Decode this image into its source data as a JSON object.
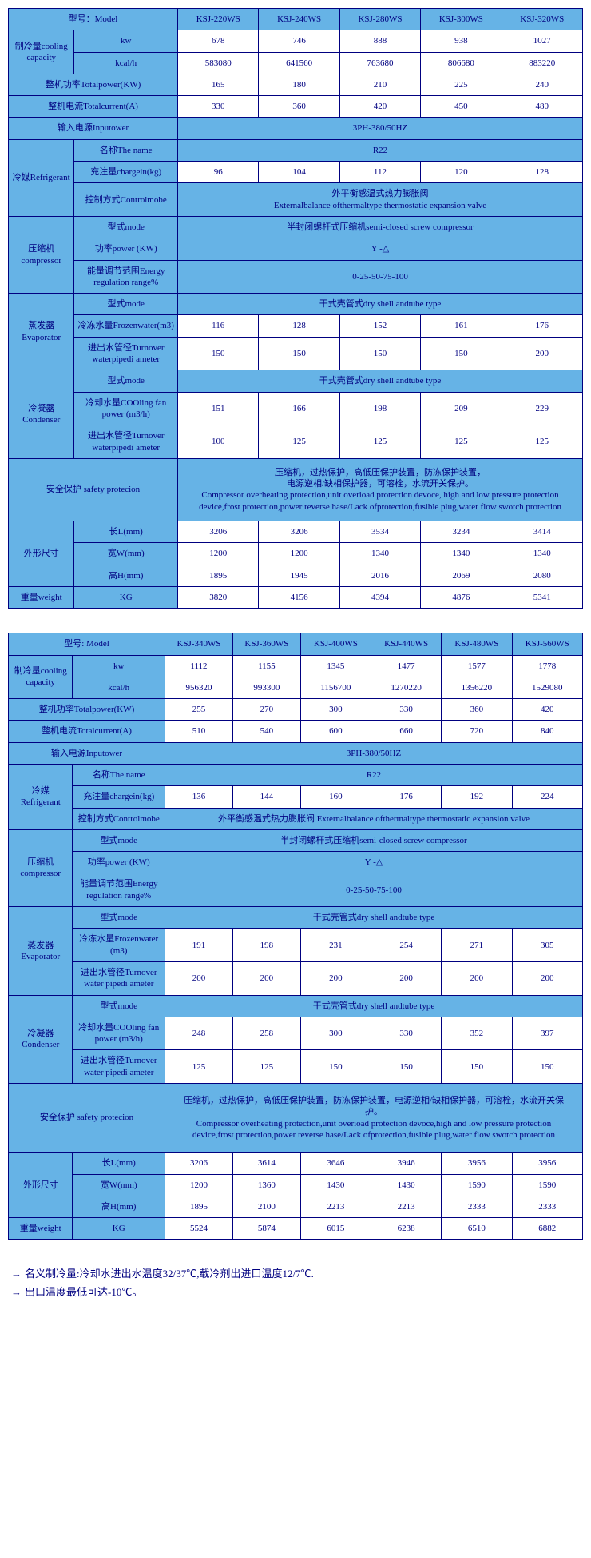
{
  "colors": {
    "header_bg": "#66b3e6",
    "border": "#000080",
    "text": "#000080",
    "value_bg": "#ffffff"
  },
  "t1": {
    "model_label": "型号：Model",
    "models": [
      "KSJ-220WS",
      "KSJ-240WS",
      "KSJ-280WS",
      "KSJ-300WS",
      "KSJ-320WS"
    ],
    "cooling_label": "制冷量cooling capacity",
    "kw_label": "kw",
    "kw": [
      "678",
      "746",
      "888",
      "938",
      "1027"
    ],
    "kcal_label": "kcal/h",
    "kcal": [
      "583080",
      "641560",
      "763680",
      "806680",
      "883220"
    ],
    "totalpower_label": "整机功率Totalpower(KW)",
    "totalpower": [
      "165",
      "180",
      "210",
      "225",
      "240"
    ],
    "totalcurrent_label": "整机电流Totalcurrent(A)",
    "totalcurrent": [
      "330",
      "360",
      "420",
      "450",
      "480"
    ],
    "inputpower_label": "输入电源Inputower",
    "inputpower_val": "3PH-380/50HZ",
    "refrigerant_label": "冷媒Refrigerant",
    "name_label": "名称The name",
    "name_val": "R22",
    "chargein_label": "充注量chargein(kg)",
    "chargein": [
      "96",
      "104",
      "112",
      "120",
      "128"
    ],
    "controlmode_label": "控制方式Controlmobe",
    "controlmode_val": "外平衡感温式热力膨胀阀\nExternalbalance ofthermaltype thermostatic expansion valve",
    "compressor_label": "压缩机compressor",
    "mode_label": "型式mode",
    "compressor_mode": "半封闭螺杆式压缩机semi-closed screw compressor",
    "power_label": "功率power (KW)",
    "power_val": "Y -△",
    "energy_label": "能量调节范围Energy regulation range%",
    "energy_val": "0-25-50-75-100",
    "evap_label": "蒸发器\nEvaporator",
    "evap_mode": "干式壳管式dry shell andtube type",
    "frozen_label": "冷冻水量Frozenwater(m3)",
    "frozen": [
      "116",
      "128",
      "152",
      "161",
      "176"
    ],
    "turnover_label": "进出水管径Turnover waterpipedi ameter",
    "evap_turnover": [
      "150",
      "150",
      "150",
      "150",
      "200"
    ],
    "cond_label": "冷凝器\nCondenser",
    "cond_mode": "干式壳管式dry shell andtube type",
    "fanpower_label": "冷却水量COOling fan power (m3/h)",
    "fanpower": [
      "151",
      "166",
      "198",
      "209",
      "229"
    ],
    "cond_turnover": [
      "100",
      "125",
      "125",
      "125",
      "125"
    ],
    "safety_label": "安全保护  safety protecion",
    "safety_val": "压缩机，过热保护，高低压保护装置，防冻保护装置，\n电源逆相/缺相保护器，可溶栓，水流开关保护。\nCompressor overheating protection,unit overioad protection devoce, high and low pressure protection device,frost protection,power reverse hase/Lack ofprotection,fusible plug,water flow swotch protection",
    "dim_label": "外形尺寸",
    "len_label": "长L(mm)",
    "len": [
      "3206",
      "3206",
      "3534",
      "3234",
      "3414"
    ],
    "wid_label": "宽W(mm)",
    "wid": [
      "1200",
      "1200",
      "1340",
      "1340",
      "1340"
    ],
    "hgt_label": "高H(mm)",
    "hgt": [
      "1895",
      "1945",
      "2016",
      "2069",
      "2080"
    ],
    "weight_label": "重量weight",
    "kg_label": "KG",
    "weight": [
      "3820",
      "4156",
      "4394",
      "4876",
      "5341"
    ]
  },
  "t2": {
    "model_label": "型号: Model",
    "models": [
      "KSJ-340WS",
      "KSJ-360WS",
      "KSJ-400WS",
      "KSJ-440WS",
      "KSJ-480WS",
      "KSJ-560WS"
    ],
    "cooling_label": "制冷量cooling capacity",
    "kw_label": "kw",
    "kw": [
      "1112",
      "1155",
      "1345",
      "1477",
      "1577",
      "1778"
    ],
    "kcal_label": "kcal/h",
    "kcal": [
      "956320",
      "993300",
      "1156700",
      "1270220",
      "1356220",
      "1529080"
    ],
    "totalpower_label": "整机功率Totalpower(KW)",
    "totalpower": [
      "255",
      "270",
      "300",
      "330",
      "360",
      "420"
    ],
    "totalcurrent_label": "整机电流Totalcurrent(A)",
    "totalcurrent": [
      "510",
      "540",
      "600",
      "660",
      "720",
      "840"
    ],
    "inputpower_label": "输入电源Inputower",
    "inputpower_val": "3PH-380/50HZ",
    "refrigerant_label": "冷媒Refrigerant",
    "name_label": "名称The name",
    "name_val": "R22",
    "chargein_label": "充注量chargein(kg)",
    "chargein": [
      "136",
      "144",
      "160",
      "176",
      "192",
      "224"
    ],
    "controlmode_label": "控制方式Controlmobe",
    "controlmode_val": "外平衡感温式热力膨胀阀 Externalbalance ofthermaltype thermostatic expansion valve",
    "compressor_label": "压缩机compressor",
    "mode_label": "型式mode",
    "compressor_mode": "半封闭螺杆式压缩机semi-closed screw compressor",
    "power_label": "功率power (KW)",
    "power_val": "Y -△",
    "energy_label": "能量调节范围Energy regulation range%",
    "energy_val": "0-25-50-75-100",
    "evap_label": "蒸发器\nEvaporator",
    "evap_mode": "干式壳管式dry shell andtube type",
    "frozen_label": "冷冻水量Frozenwater (m3)",
    "frozen": [
      "191",
      "198",
      "231",
      "254",
      "271",
      "305"
    ],
    "turnover_label": "进出水管径Turnover water pipedi ameter",
    "evap_turnover": [
      "200",
      "200",
      "200",
      "200",
      "200",
      "200"
    ],
    "cond_label": "冷凝器\nCondenser",
    "cond_mode": "干式壳管式dry shell andtube type",
    "fanpower_label": "冷却水量COOling fan power (m3/h)",
    "fanpower": [
      "248",
      "258",
      "300",
      "330",
      "352",
      "397"
    ],
    "cond_turnover": [
      "125",
      "125",
      "150",
      "150",
      "150",
      "150"
    ],
    "safety_label": "安全保护  safety protecion",
    "safety_val": "压缩机，过热保护，高低压保护装置，防冻保护装置，电源逆相/缺相保护器，可溶栓，水流开关保护。\nCompressor overheating protection,unit overioad protection devoce,high and low pressure protection device,frost protection,power reverse hase/Lack ofprotection,fusible plug,water flow swotch protection",
    "dim_label": "外形尺寸",
    "len_label": "长L(mm)",
    "len": [
      "3206",
      "3614",
      "3646",
      "3946",
      "3956",
      "3956"
    ],
    "wid_label": "宽W(mm)",
    "wid": [
      "1200",
      "1360",
      "1430",
      "1430",
      "1590",
      "1590"
    ],
    "hgt_label": "高H(mm)",
    "hgt": [
      "1895",
      "2100",
      "2213",
      "2213",
      "2333",
      "2333"
    ],
    "weight_label": "重量weight",
    "kg_label": "KG",
    "weight": [
      "5524",
      "5874",
      "6015",
      "6238",
      "6510",
      "6882"
    ]
  },
  "notes": {
    "n1": "名义制冷量:冷却水进出水温度32/37℃,载冷剂出进口温度12/7℃.",
    "n2": "出口温度最低可达-10℃。"
  }
}
